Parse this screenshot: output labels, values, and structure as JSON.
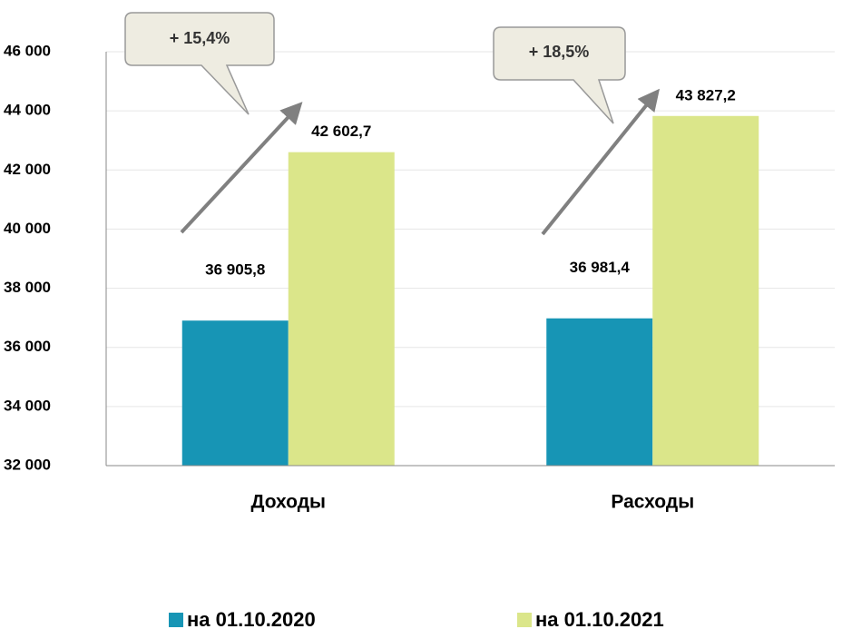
{
  "chart_data": {
    "type": "bar",
    "categories": [
      "Доходы",
      "Расходы"
    ],
    "series": [
      {
        "name": "на 01.10.2020",
        "color": "#1795b5",
        "values": [
          36905.8,
          36981.4
        ],
        "value_labels": [
          "36 905,8",
          "36 981,4"
        ]
      },
      {
        "name": "на 01.10.2021",
        "color": "#dbe68a",
        "values": [
          42602.7,
          43827.2
        ],
        "value_labels": [
          "42 602,7",
          "43 827,2"
        ]
      }
    ],
    "annotations": [
      "+ 15,4%",
      "+ 18,5%"
    ],
    "ylim": [
      32000,
      46000
    ],
    "yticks": [
      {
        "value": 32000,
        "label": "32 000"
      },
      {
        "value": 34000,
        "label": "34 000"
      },
      {
        "value": 36000,
        "label": "36 000"
      },
      {
        "value": 38000,
        "label": "38 000"
      },
      {
        "value": 40000,
        "label": "40 000"
      },
      {
        "value": 42000,
        "label": "42 000"
      },
      {
        "value": 44000,
        "label": "44 000"
      },
      {
        "value": 46000,
        "label": "46 000"
      }
    ],
    "grid": true
  }
}
